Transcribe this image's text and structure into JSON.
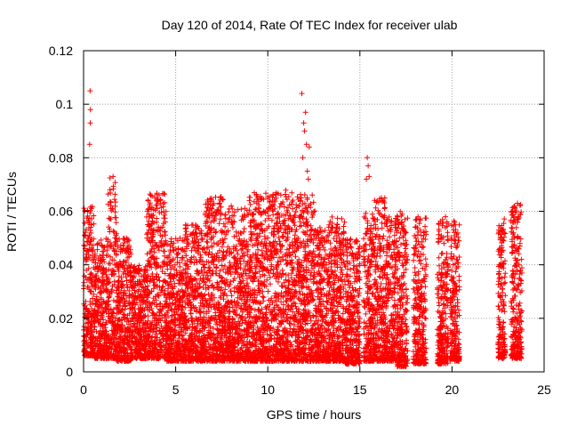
{
  "chart_data": {
    "type": "scatter",
    "title": "Day 120 of 2014, Rate Of TEC Index for receiver ulab",
    "xlabel": "GPS time / hours",
    "ylabel": "ROTI / TECUs",
    "xlim": [
      0,
      25
    ],
    "ylim": [
      0,
      0.12
    ],
    "x_ticks": [
      0,
      5,
      10,
      15,
      20,
      25
    ],
    "y_ticks": [
      0,
      0.02,
      0.04,
      0.06,
      0.08,
      0.1,
      0.12
    ],
    "x_tick_labels": [
      "0",
      "5",
      "10",
      "15",
      "20",
      "25"
    ],
    "y_tick_labels": [
      "0",
      "0.02",
      "0.04",
      "0.06",
      "0.08",
      "0.1",
      "0.12"
    ],
    "grid": true,
    "marker": "plus",
    "color": "#ff0000",
    "series": [
      {
        "points_note_excluded": false,
        "clusters": [
          {
            "x": [
              0.0,
              0.6
            ],
            "ymin": 0.006,
            "ymax": 0.062
          },
          {
            "x": [
              0.6,
              1.3
            ],
            "ymin": 0.005,
            "ymax": 0.05
          },
          {
            "x": [
              1.3,
              1.8
            ],
            "ymin": 0.005,
            "ymax": 0.073
          },
          {
            "x": [
              1.8,
              2.6
            ],
            "ymin": 0.004,
            "ymax": 0.05
          },
          {
            "x": [
              2.6,
              3.4
            ],
            "ymin": 0.005,
            "ymax": 0.04
          },
          {
            "x": [
              3.4,
              4.5
            ],
            "ymin": 0.005,
            "ymax": 0.067
          },
          {
            "x": [
              4.5,
              5.5
            ],
            "ymin": 0.004,
            "ymax": 0.05
          },
          {
            "x": [
              5.5,
              6.6
            ],
            "ymin": 0.004,
            "ymax": 0.055
          },
          {
            "x": [
              6.6,
              7.6
            ],
            "ymin": 0.004,
            "ymax": 0.066
          },
          {
            "x": [
              7.6,
              9.0
            ],
            "ymin": 0.004,
            "ymax": 0.062
          },
          {
            "x": [
              9.0,
              10.5
            ],
            "ymin": 0.004,
            "ymax": 0.067
          },
          {
            "x": [
              10.5,
              11.5
            ],
            "ymin": 0.004,
            "ymax": 0.068
          },
          {
            "x": [
              11.5,
              12.6
            ],
            "ymin": 0.004,
            "ymax": 0.067
          },
          {
            "x": [
              12.6,
              13.3
            ],
            "ymin": 0.004,
            "ymax": 0.055
          },
          {
            "x": [
              13.3,
              14.2
            ],
            "ymin": 0.004,
            "ymax": 0.058
          },
          {
            "x": [
              14.2,
              15.0
            ],
            "ymin": 0.003,
            "ymax": 0.05
          },
          {
            "x": [
              15.2,
              15.7
            ],
            "ymin": 0.004,
            "ymax": 0.06
          },
          {
            "x": [
              15.7,
              16.4
            ],
            "ymin": 0.004,
            "ymax": 0.065
          },
          {
            "x": [
              16.4,
              17.0
            ],
            "ymin": 0.004,
            "ymax": 0.058
          },
          {
            "x": [
              17.0,
              17.6
            ],
            "ymin": 0.002,
            "ymax": 0.06
          },
          {
            "x": [
              17.9,
              18.6
            ],
            "ymin": 0.003,
            "ymax": 0.058
          },
          {
            "x": [
              19.2,
              19.8
            ],
            "ymin": 0.003,
            "ymax": 0.058
          },
          {
            "x": [
              19.9,
              20.4
            ],
            "ymin": 0.004,
            "ymax": 0.058
          },
          {
            "x": [
              22.5,
              22.9
            ],
            "ymin": 0.005,
            "ymax": 0.058
          },
          {
            "x": [
              23.2,
              23.8
            ],
            "ymin": 0.005,
            "ymax": 0.063
          }
        ],
        "peaks": [
          {
            "x": 0.35,
            "y": 0.105
          },
          {
            "x": 0.37,
            "y": 0.098
          },
          {
            "x": 0.36,
            "y": 0.093
          },
          {
            "x": 0.33,
            "y": 0.085
          },
          {
            "x": 11.85,
            "y": 0.104
          },
          {
            "x": 12.05,
            "y": 0.097
          },
          {
            "x": 11.95,
            "y": 0.093
          },
          {
            "x": 12.0,
            "y": 0.09
          },
          {
            "x": 12.1,
            "y": 0.085
          },
          {
            "x": 11.9,
            "y": 0.08
          },
          {
            "x": 12.25,
            "y": 0.084
          },
          {
            "x": 12.15,
            "y": 0.075
          },
          {
            "x": 12.2,
            "y": 0.072
          },
          {
            "x": 15.4,
            "y": 0.08
          },
          {
            "x": 15.45,
            "y": 0.077
          },
          {
            "x": 15.35,
            "y": 0.072
          },
          {
            "x": 15.5,
            "y": 0.073
          },
          {
            "x": 1.6,
            "y": 0.073
          },
          {
            "x": 16.35,
            "y": 0.065
          },
          {
            "x": 23.55,
            "y": 0.063
          }
        ]
      }
    ]
  }
}
